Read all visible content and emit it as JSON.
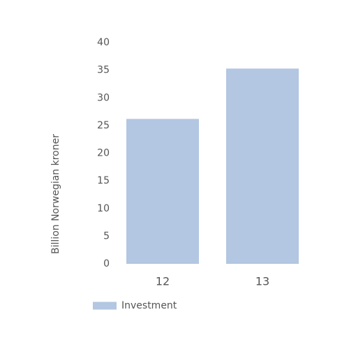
{
  "chart_data": {
    "type": "bar",
    "y_label": "Billion Norwegian kroner",
    "categories": [
      "12",
      "13"
    ],
    "series": [
      {
        "name": "Investment",
        "color": "#b3c6e2",
        "values": [
          26.2,
          35.3
        ]
      }
    ],
    "ylim": [
      0,
      40
    ],
    "yticks": [
      0,
      5,
      10,
      15,
      20,
      25,
      30,
      35,
      40
    ],
    "grid": false,
    "legend": "bottom"
  }
}
